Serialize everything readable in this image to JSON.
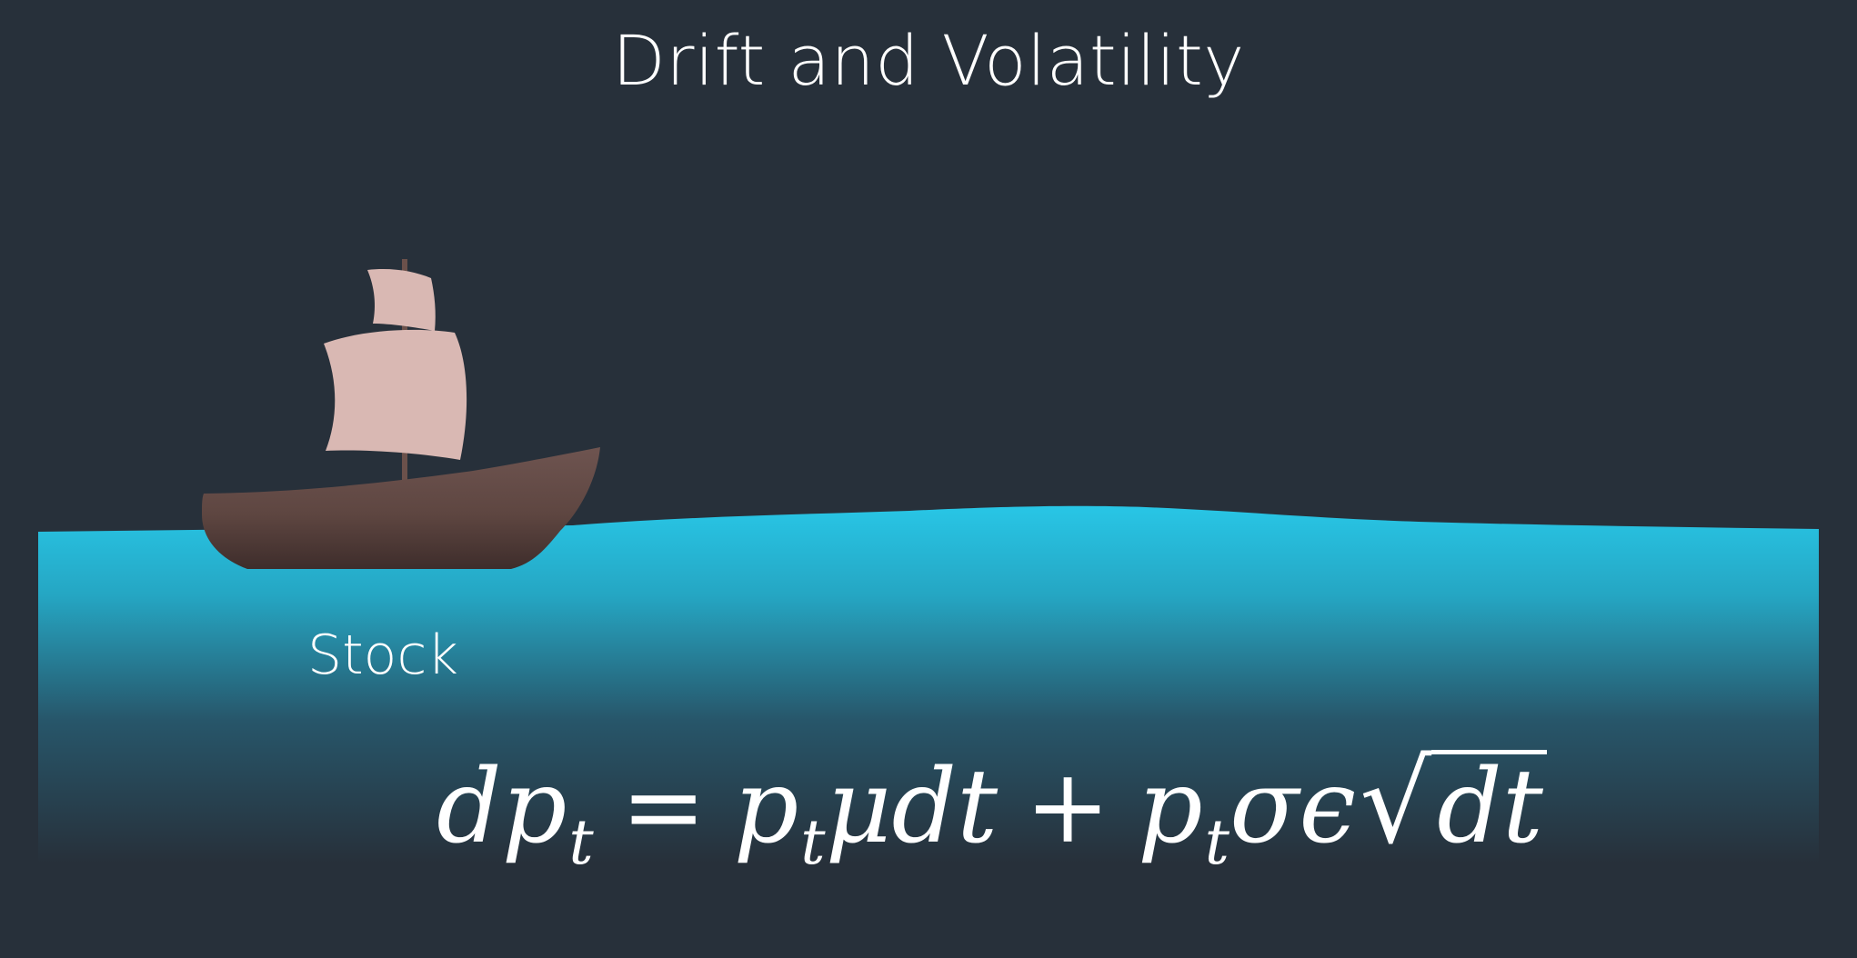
{
  "title": "Drift and Volatility",
  "label": "Stock",
  "equation": {
    "lhs_d": "dp",
    "lhs_sub": "t",
    "equals": "=",
    "term1_p": "p",
    "term1_sub": "t",
    "term1_rest": "μdt",
    "plus": "+",
    "term2_p": "p",
    "term2_sub": "t",
    "term2_rest": "σϵ",
    "sqrt_symbol": "√",
    "sqrt_arg": "dt"
  },
  "colors": {
    "background": "#27303a",
    "water_top": "#27c4e4",
    "water_bottom": "#27303a",
    "boat_hull": "#6b514b",
    "sail": "#d9b8b3",
    "mast": "#6b514b",
    "text": "#ffffff"
  }
}
